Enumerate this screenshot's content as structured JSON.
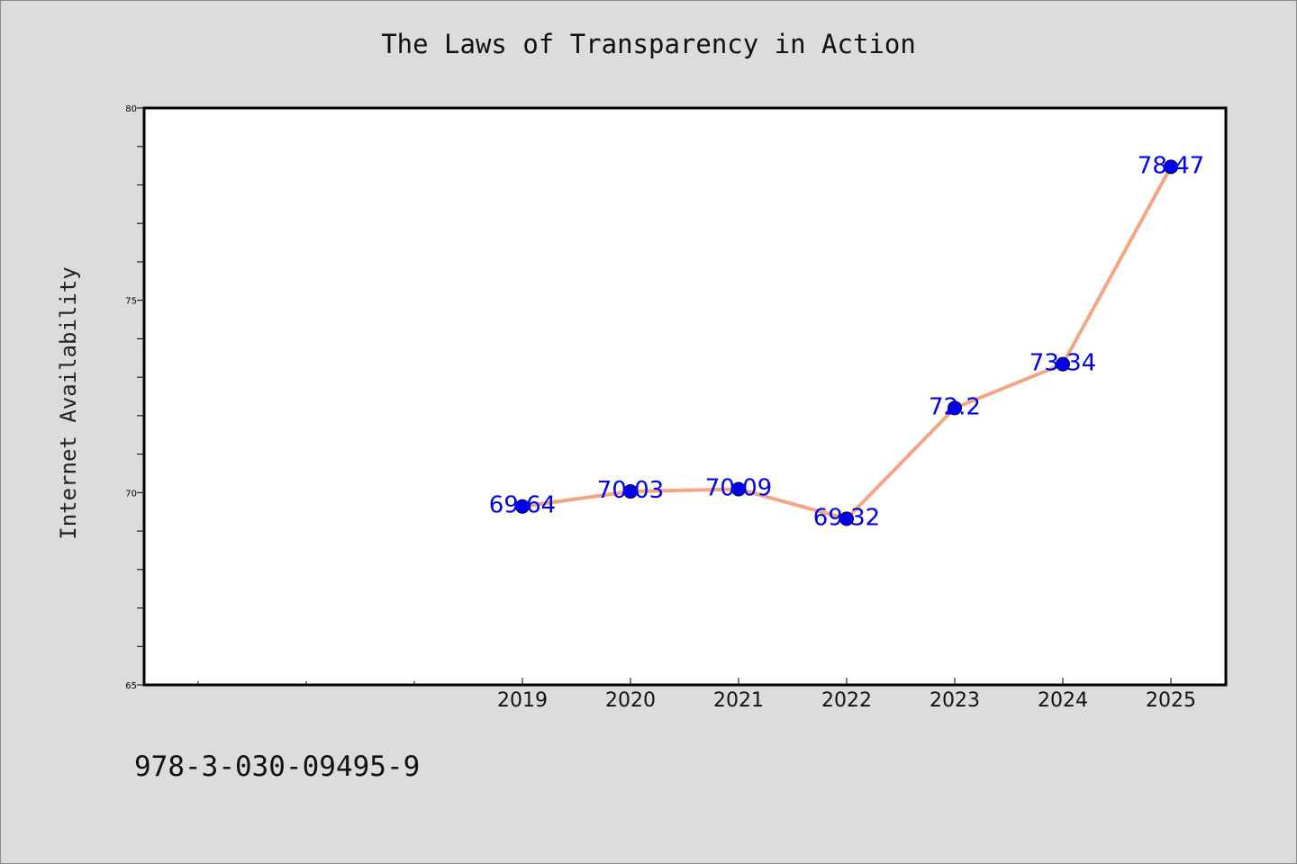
{
  "footer": {
    "isbn": "978-3-030-09495-9"
  },
  "colors": {
    "line": "#f4a582",
    "marker": "#0000ee",
    "label": "#0000ee",
    "plot_bg": "#ffffff",
    "page_bg": "#dcdcdc"
  },
  "chart_data": {
    "type": "line",
    "title": "The Laws of Transparency in Action",
    "xlabel": "",
    "ylabel": "Internet Availability",
    "x": [
      "2019",
      "2020",
      "2021",
      "2022",
      "2023",
      "2024",
      "2025"
    ],
    "values": [
      69.64,
      70.03,
      70.09,
      69.32,
      72.2,
      73.34,
      78.47
    ],
    "data_labels": [
      "69.64",
      "70.03",
      "70.09",
      "69.32",
      "72.2",
      "73.34",
      "78.47"
    ],
    "ylim": [
      65,
      80
    ],
    "yticks": [
      "65",
      "70",
      "75",
      "80"
    ],
    "grid": false,
    "legend": "none"
  }
}
